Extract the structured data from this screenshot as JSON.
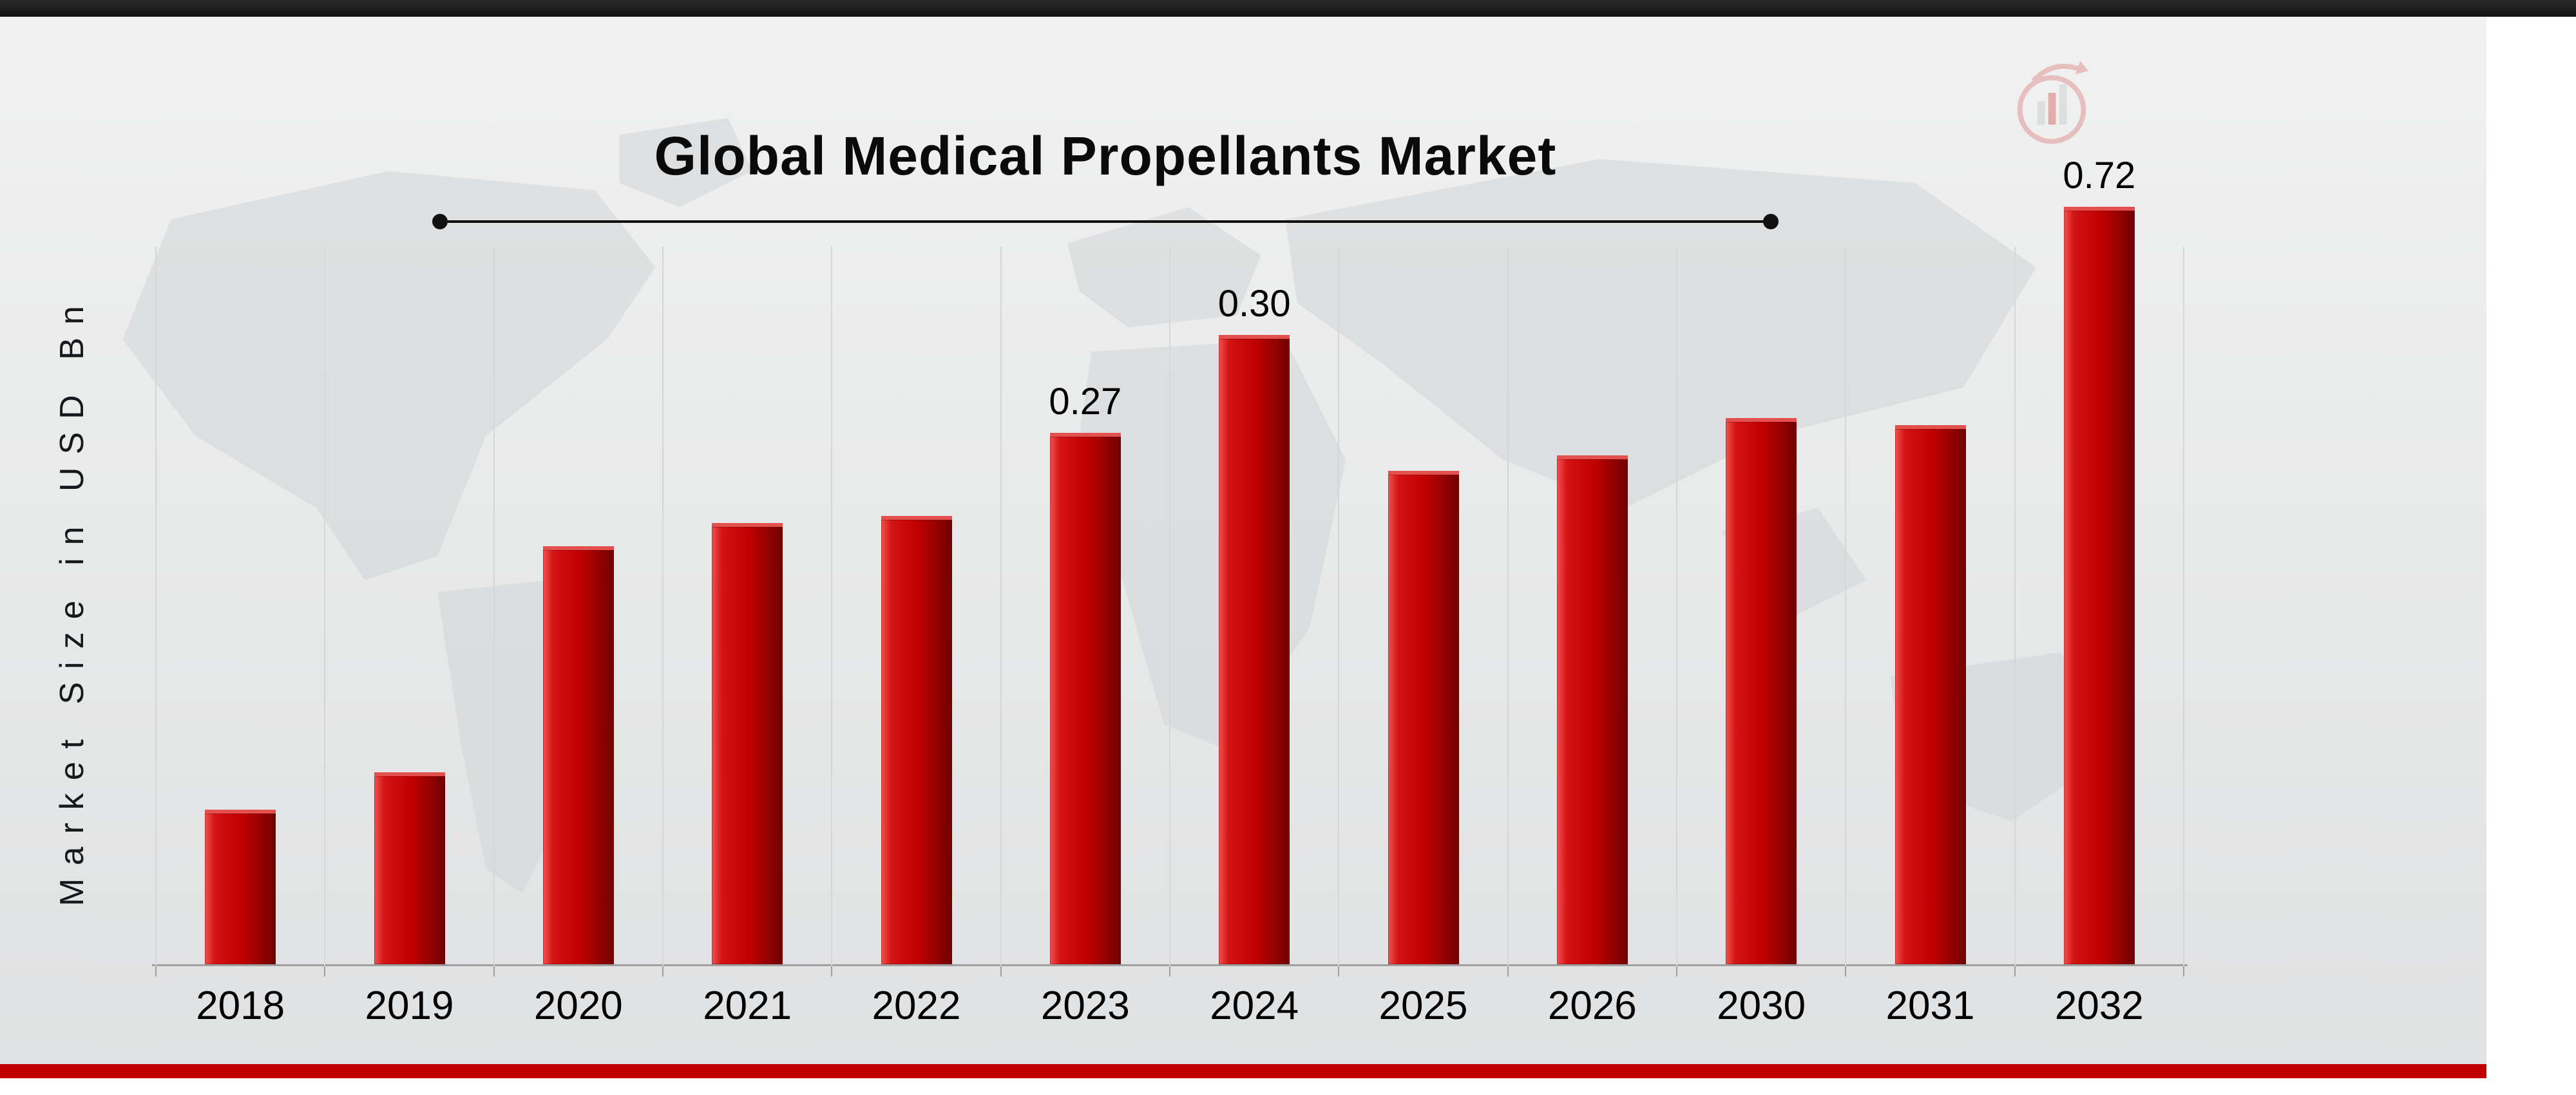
{
  "page": {
    "top_bar_color": "#141414",
    "bottom_bar_color": "#c00000",
    "background_color": "#e9eaea"
  },
  "header": {
    "title": "Global Medical Propellants Market"
  },
  "icons": {
    "watermark": "bar-chart-logo-watermark",
    "background": "world-map-silhouette"
  },
  "chart_data": {
    "type": "bar",
    "title": "Global Medical Propellants Market",
    "xlabel": "",
    "ylabel": "Market Size in USD Bn",
    "categories": [
      "2018",
      "2019",
      "2020",
      "2021",
      "2022",
      "2023",
      "2024",
      "2025",
      "2026",
      "2030",
      "2031",
      "2032"
    ],
    "values": [
      0.09,
      0.11,
      0.2,
      0.21,
      0.22,
      0.27,
      0.3,
      0.24,
      0.25,
      0.28,
      0.28,
      0.72
    ],
    "labels": [
      "",
      "",
      "",
      "",
      "",
      "0.27",
      "0.30",
      "",
      "",
      "",
      "",
      "0.72"
    ],
    "bar_color": "#c00000",
    "bar_edge_color": "#700000",
    "bar_highlight_color": "#ef5350",
    "ylim": [
      0,
      0.8
    ],
    "grid": "vertical-light",
    "legend": "none",
    "display_height_pct": [
      20,
      25,
      55,
      58,
      59,
      70,
      83,
      65,
      67,
      72,
      71,
      100
    ]
  }
}
